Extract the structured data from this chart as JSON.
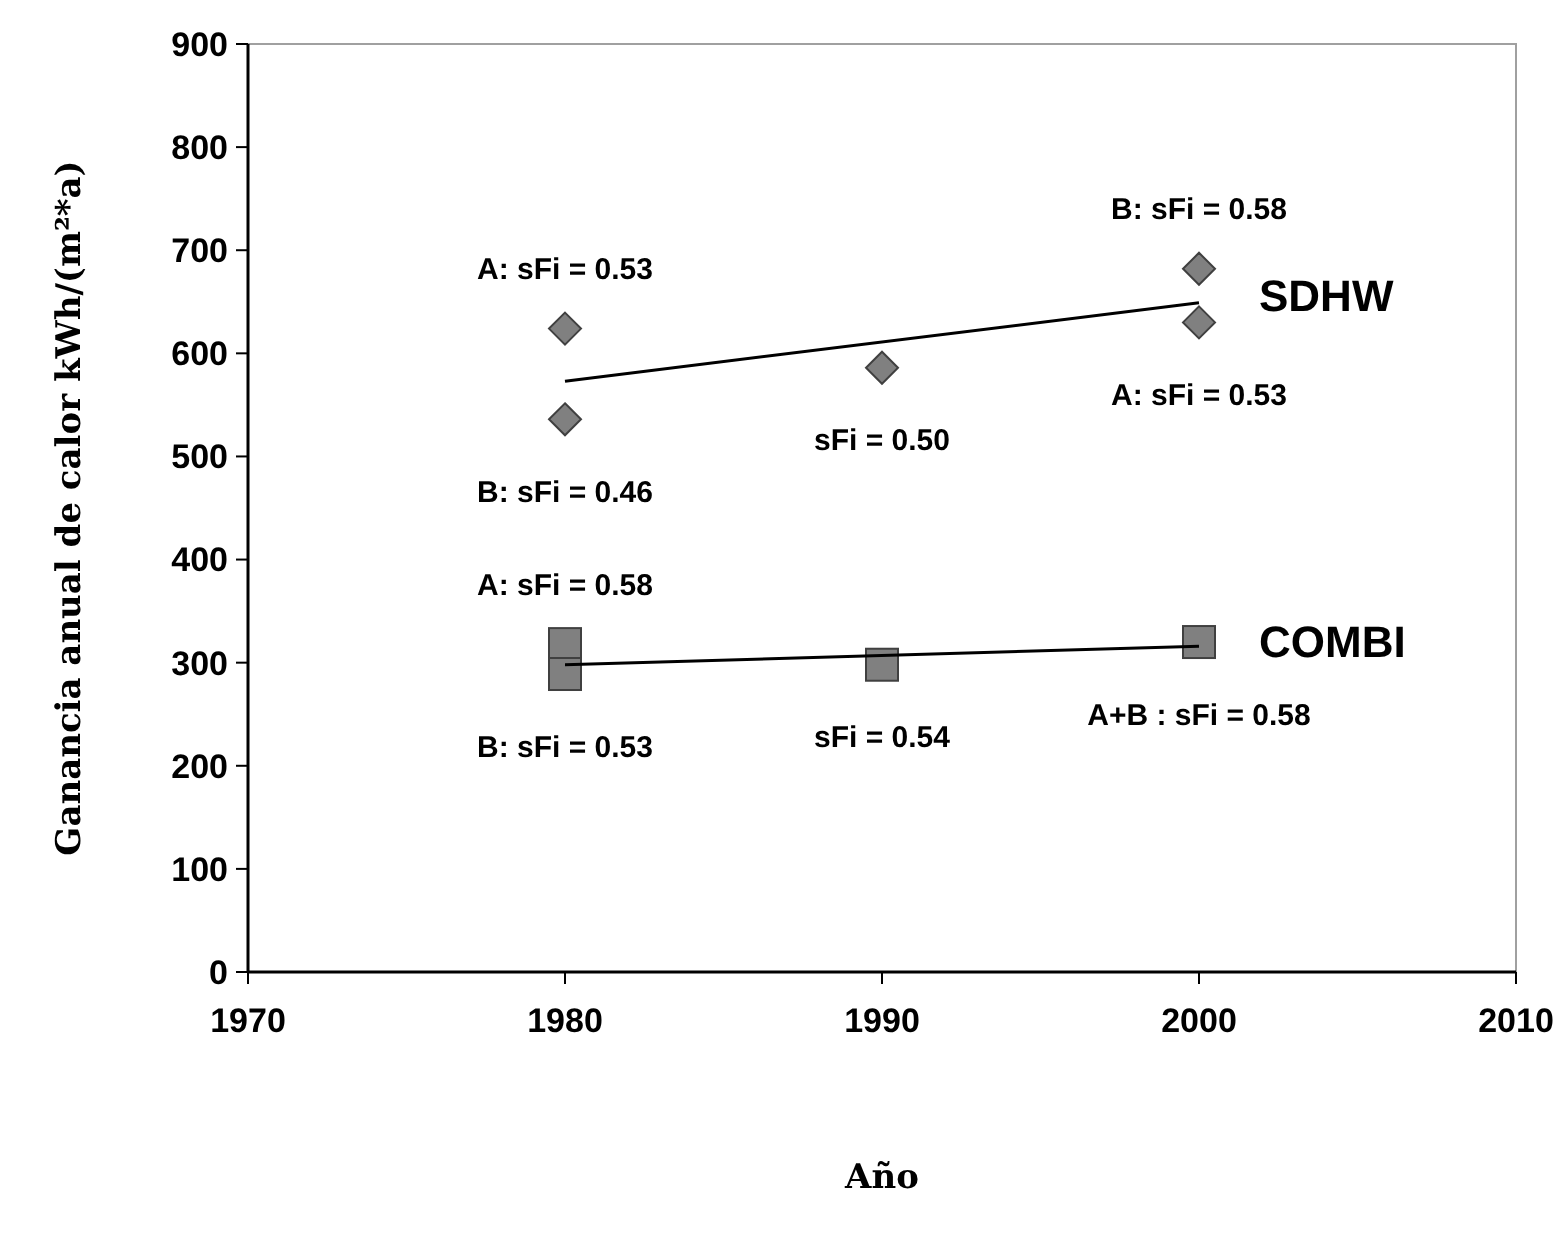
{
  "chart_data": {
    "type": "scatter",
    "xlabel": "Año",
    "ylabel": "Ganancia anual de calor kWh/(m²*a)",
    "xlim": [
      1970,
      2010
    ],
    "xticks": [
      1970,
      1980,
      1990,
      2000,
      2010
    ],
    "ylim": [
      0,
      900
    ],
    "yticks": [
      0,
      100,
      200,
      300,
      400,
      500,
      600,
      700,
      800,
      900
    ],
    "grid": false,
    "series": [
      {
        "name": "SDHW",
        "marker": "diamond",
        "color": "#808080",
        "x": [
          1980,
          1980,
          1990,
          2000,
          2000
        ],
        "values": [
          624,
          536,
          586,
          682,
          630
        ]
      },
      {
        "name": "COMBI",
        "marker": "square",
        "color": "#808080",
        "x": [
          1980,
          1980,
          1990,
          2000
        ],
        "values": [
          318,
          289,
          298,
          320
        ]
      },
      {
        "type": "line",
        "marker": "none",
        "color": "#000000",
        "x": [
          1980,
          2000
        ],
        "values": [
          573,
          649
        ]
      },
      {
        "type": "line",
        "marker": "none",
        "color": "#000000",
        "x": [
          1980,
          2000
        ],
        "values": [
          298,
          316
        ]
      }
    ],
    "annotations": [
      {
        "text": "A: sFi = 0.53",
        "x": 1980,
        "y": 624
      },
      {
        "text": "B: sFi = 0.46",
        "x": 1980,
        "y": 536
      },
      {
        "text": "sFi = 0.50",
        "x": 1990,
        "y": 586
      },
      {
        "text": "B: sFi = 0.58",
        "x": 2000,
        "y": 682
      },
      {
        "text": "A: sFi = 0.53",
        "x": 2000,
        "y": 630
      },
      {
        "text": "A: sFi = 0.58",
        "x": 1980,
        "y": 318
      },
      {
        "text": "B: sFi = 0.53",
        "x": 1980,
        "y": 289
      },
      {
        "text": "sFi = 0.54",
        "x": 1990,
        "y": 298
      },
      {
        "text": "A+B : sFi = 0.58",
        "x": 2000,
        "y": 320
      }
    ]
  }
}
